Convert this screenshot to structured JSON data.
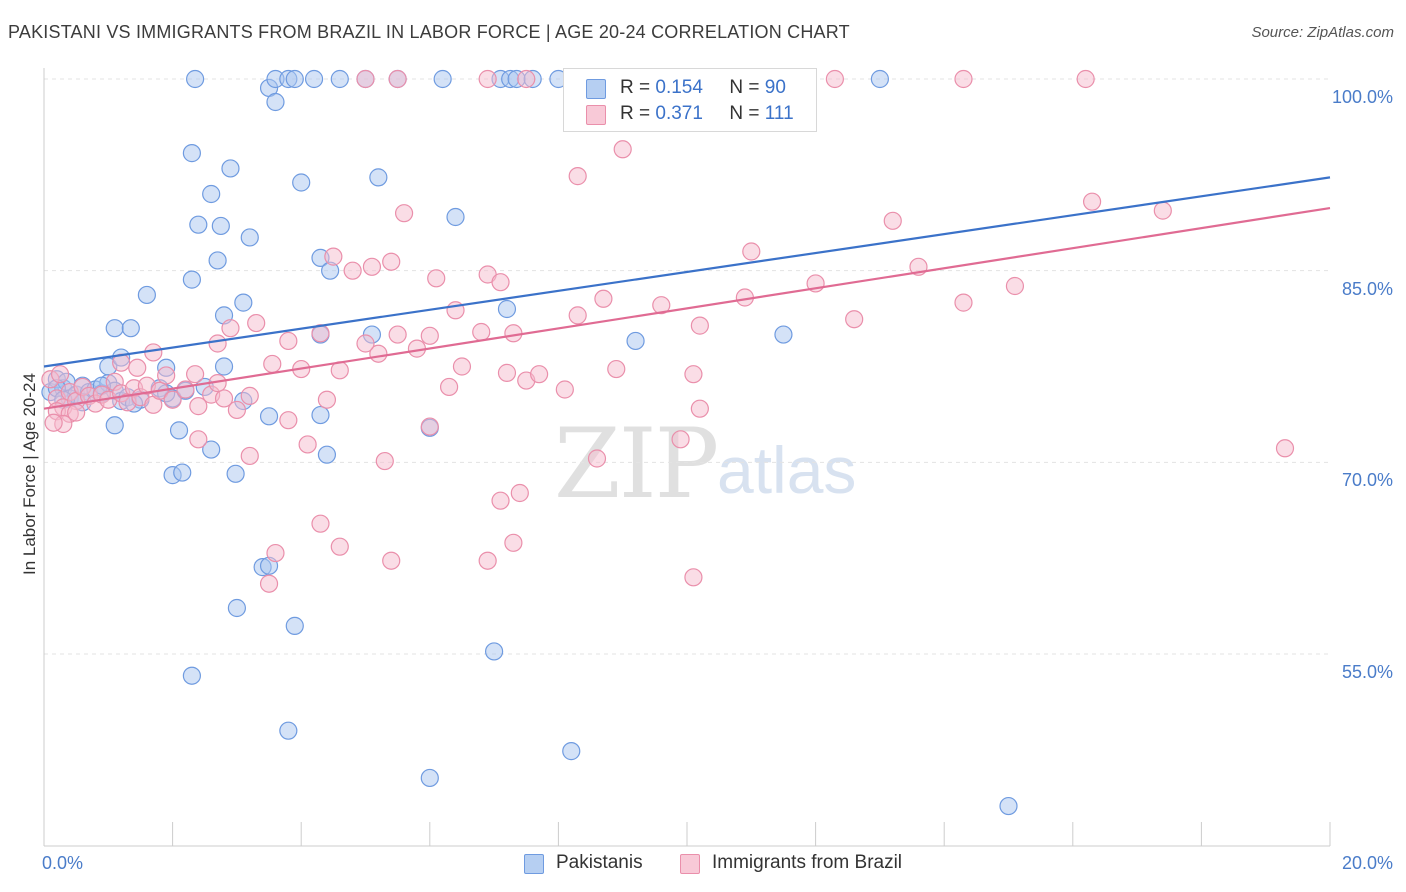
{
  "title": "PAKISTANI VS IMMIGRANTS FROM BRAZIL IN LABOR FORCE | AGE 20-24 CORRELATION CHART",
  "source": "Source: ZipAtlas.com",
  "watermark": {
    "zip": "ZIP",
    "atlas": "atlas"
  },
  "colors": {
    "blue_fill": "#a9c6ef",
    "blue_stroke": "#6f9be0",
    "blue_line": "#3b72c9",
    "pink_fill": "#f6bccd",
    "pink_stroke": "#ea8fab",
    "pink_line": "#e06b93",
    "tick_text": "#4a7cc9",
    "grid": "#e3e3e3"
  },
  "legend": {
    "rows": [
      {
        "r_label": "R = ",
        "r_value": "0.154",
        "n_label": "N = ",
        "n_value": "90"
      },
      {
        "r_label": "R = ",
        "r_value": "0.371",
        "n_label": "N = ",
        "n_value": "111"
      }
    ]
  },
  "bottom_legend": {
    "series1": "Pakistanis",
    "series2": "Immigrants from Brazil"
  },
  "chart_data": {
    "type": "scatter",
    "title": "PAKISTANI VS IMMIGRANTS FROM BRAZIL IN LABOR FORCE | AGE 20-24 CORRELATION CHART",
    "xlabel": "",
    "ylabel": "In Labor Force | Age 20-24",
    "xlim": [
      0,
      20
    ],
    "ylim": [
      42,
      102
    ],
    "x_ticks": [
      0,
      2,
      4,
      6,
      8,
      10,
      12,
      14,
      16,
      18,
      20
    ],
    "x_tick_labels": {
      "min": "0.0%",
      "max": "20.0%"
    },
    "y_ticks": [
      55,
      70,
      85,
      100
    ],
    "y_tick_labels": [
      "55.0%",
      "70.0%",
      "85.0%",
      "100.0%"
    ],
    "grid": true,
    "series": [
      {
        "name": "Pakistanis",
        "r": 0.154,
        "n": 90,
        "trend": {
          "x": [
            0,
            20
          ],
          "y": [
            77.5,
            92.3
          ]
        },
        "points": [
          [
            0.1,
            75.5
          ],
          [
            0.2,
            76.5
          ],
          [
            0.3,
            75.8
          ],
          [
            0.35,
            76.3
          ],
          [
            0.4,
            75.0
          ],
          [
            0.5,
            75.3
          ],
          [
            0.6,
            76.0
          ],
          [
            0.7,
            75.5
          ],
          [
            0.8,
            75.7
          ],
          [
            0.9,
            75.4
          ],
          [
            1.0,
            76.2
          ],
          [
            1.1,
            75.6
          ],
          [
            1.2,
            74.8
          ],
          [
            1.3,
            75.1
          ],
          [
            1.5,
            74.9
          ],
          [
            1.8,
            75.8
          ],
          [
            2.0,
            75.0
          ],
          [
            2.2,
            75.6
          ],
          [
            0.2,
            75.8
          ],
          [
            0.3,
            74.9
          ],
          [
            0.6,
            74.7
          ],
          [
            0.9,
            76.0
          ],
          [
            1.4,
            74.6
          ],
          [
            1.9,
            75.4
          ],
          [
            2.5,
            75.9
          ],
          [
            3.1,
            74.8
          ],
          [
            1.0,
            77.5
          ],
          [
            1.2,
            78.2
          ],
          [
            1.9,
            77.4
          ],
          [
            2.8,
            77.5
          ],
          [
            1.1,
            80.5
          ],
          [
            1.35,
            80.5
          ],
          [
            1.1,
            72.9
          ],
          [
            2.1,
            72.5
          ],
          [
            2.6,
            71.0
          ],
          [
            2.0,
            69.0
          ],
          [
            2.15,
            69.2
          ],
          [
            2.98,
            69.1
          ],
          [
            3.5,
            73.6
          ],
          [
            4.3,
            73.7
          ],
          [
            4.4,
            70.6
          ],
          [
            6.0,
            72.7
          ],
          [
            2.8,
            81.5
          ],
          [
            3.1,
            82.5
          ],
          [
            4.3,
            80.0
          ],
          [
            5.1,
            80.0
          ],
          [
            7.2,
            82.0
          ],
          [
            11.5,
            80.0
          ],
          [
            9.2,
            79.5
          ],
          [
            1.6,
            83.1
          ],
          [
            2.3,
            84.3
          ],
          [
            2.7,
            85.8
          ],
          [
            3.2,
            87.6
          ],
          [
            2.4,
            88.6
          ],
          [
            2.75,
            88.5
          ],
          [
            4.3,
            86.0
          ],
          [
            4.45,
            85.0
          ],
          [
            2.6,
            91.0
          ],
          [
            4.0,
            91.9
          ],
          [
            5.2,
            92.3
          ],
          [
            2.3,
            94.2
          ],
          [
            2.9,
            93.0
          ],
          [
            6.4,
            89.2
          ],
          [
            3.5,
            99.3
          ],
          [
            3.6,
            98.2
          ],
          [
            2.35,
            100.0
          ],
          [
            3.6,
            100.0
          ],
          [
            3.8,
            100.0
          ],
          [
            3.9,
            100.0
          ],
          [
            4.2,
            100.0
          ],
          [
            4.6,
            100.0
          ],
          [
            5.0,
            100.0
          ],
          [
            5.5,
            100.0
          ],
          [
            6.2,
            100.0
          ],
          [
            7.1,
            100.0
          ],
          [
            7.25,
            100.0
          ],
          [
            7.35,
            100.0
          ],
          [
            7.6,
            100.0
          ],
          [
            8.0,
            100.0
          ],
          [
            8.8,
            100.0
          ],
          [
            9.4,
            100.0
          ],
          [
            9.9,
            100.0
          ],
          [
            13.0,
            100.0
          ],
          [
            3.4,
            61.8
          ],
          [
            3.5,
            61.9
          ],
          [
            3.0,
            58.6
          ],
          [
            3.9,
            57.2
          ],
          [
            7.0,
            55.2
          ],
          [
            2.3,
            53.3
          ],
          [
            3.8,
            49.0
          ],
          [
            8.2,
            47.4
          ],
          [
            6.0,
            45.3
          ],
          [
            15.0,
            43.1
          ]
        ]
      },
      {
        "name": "Immigrants from Brazil",
        "r": 0.371,
        "n": 111,
        "trend": {
          "x": [
            0,
            20
          ],
          "y": [
            74.2,
            89.9
          ]
        },
        "points": [
          [
            0.1,
            76.5
          ],
          [
            0.2,
            75.0
          ],
          [
            0.3,
            74.3
          ],
          [
            0.4,
            75.5
          ],
          [
            0.5,
            74.8
          ],
          [
            0.6,
            75.9
          ],
          [
            0.7,
            75.2
          ],
          [
            0.8,
            74.6
          ],
          [
            0.9,
            75.3
          ],
          [
            1.0,
            74.9
          ],
          [
            1.1,
            76.3
          ],
          [
            1.2,
            75.4
          ],
          [
            1.3,
            74.7
          ],
          [
            1.4,
            75.8
          ],
          [
            1.5,
            75.1
          ],
          [
            1.6,
            76.0
          ],
          [
            1.7,
            74.5
          ],
          [
            1.8,
            75.6
          ],
          [
            2.0,
            74.9
          ],
          [
            2.2,
            75.7
          ],
          [
            2.4,
            74.4
          ],
          [
            2.6,
            75.3
          ],
          [
            2.8,
            75.0
          ],
          [
            3.0,
            74.1
          ],
          [
            3.2,
            75.2
          ],
          [
            0.2,
            74.0
          ],
          [
            0.4,
            73.8
          ],
          [
            0.5,
            73.9
          ],
          [
            0.3,
            73.0
          ],
          [
            0.15,
            73.1
          ],
          [
            0.25,
            76.9
          ],
          [
            1.45,
            77.4
          ],
          [
            1.2,
            77.8
          ],
          [
            1.9,
            76.8
          ],
          [
            2.35,
            76.9
          ],
          [
            2.7,
            76.2
          ],
          [
            3.55,
            77.7
          ],
          [
            4.0,
            77.3
          ],
          [
            4.6,
            77.2
          ],
          [
            5.2,
            78.5
          ],
          [
            5.8,
            78.9
          ],
          [
            6.3,
            75.9
          ],
          [
            6.5,
            77.5
          ],
          [
            7.2,
            77.0
          ],
          [
            7.5,
            76.4
          ],
          [
            7.7,
            76.9
          ],
          [
            8.1,
            75.7
          ],
          [
            8.9,
            77.3
          ],
          [
            10.1,
            76.9
          ],
          [
            1.7,
            78.6
          ],
          [
            2.7,
            79.3
          ],
          [
            2.9,
            80.5
          ],
          [
            3.3,
            80.9
          ],
          [
            3.8,
            79.5
          ],
          [
            4.3,
            80.1
          ],
          [
            5.0,
            79.3
          ],
          [
            5.5,
            80.0
          ],
          [
            6.0,
            79.9
          ],
          [
            6.4,
            81.9
          ],
          [
            6.8,
            80.2
          ],
          [
            7.3,
            80.1
          ],
          [
            8.3,
            81.5
          ],
          [
            8.7,
            82.8
          ],
          [
            9.6,
            82.3
          ],
          [
            10.2,
            80.7
          ],
          [
            10.9,
            82.9
          ],
          [
            12.6,
            81.2
          ],
          [
            14.3,
            82.5
          ],
          [
            12.0,
            84.0
          ],
          [
            13.6,
            85.3
          ],
          [
            15.1,
            83.8
          ],
          [
            6.1,
            84.4
          ],
          [
            6.9,
            84.7
          ],
          [
            7.1,
            84.1
          ],
          [
            4.8,
            85.0
          ],
          [
            5.1,
            85.3
          ],
          [
            5.4,
            85.7
          ],
          [
            4.5,
            86.1
          ],
          [
            11.0,
            86.5
          ],
          [
            13.2,
            88.9
          ],
          [
            17.4,
            89.7
          ],
          [
            16.3,
            90.4
          ],
          [
            5.6,
            89.5
          ],
          [
            8.3,
            92.4
          ],
          [
            9.0,
            94.5
          ],
          [
            2.4,
            71.8
          ],
          [
            3.2,
            70.5
          ],
          [
            3.8,
            73.3
          ],
          [
            4.1,
            71.4
          ],
          [
            4.4,
            74.9
          ],
          [
            5.3,
            70.1
          ],
          [
            6.0,
            72.8
          ],
          [
            7.1,
            67.0
          ],
          [
            7.4,
            67.6
          ],
          [
            8.6,
            70.3
          ],
          [
            9.9,
            71.8
          ],
          [
            10.2,
            74.2
          ],
          [
            19.3,
            71.1
          ],
          [
            3.6,
            62.9
          ],
          [
            3.5,
            60.5
          ],
          [
            4.3,
            65.2
          ],
          [
            4.6,
            63.4
          ],
          [
            5.4,
            62.3
          ],
          [
            6.9,
            62.3
          ],
          [
            7.3,
            63.7
          ],
          [
            10.1,
            61.0
          ],
          [
            5.0,
            100.0
          ],
          [
            5.5,
            100.0
          ],
          [
            6.9,
            100.0
          ],
          [
            7.5,
            100.0
          ],
          [
            8.3,
            100.0
          ],
          [
            9.1,
            100.0
          ],
          [
            9.8,
            100.0
          ],
          [
            10.4,
            100.0
          ],
          [
            10.9,
            100.0
          ],
          [
            11.5,
            100.0
          ],
          [
            12.3,
            100.0
          ],
          [
            14.3,
            100.0
          ],
          [
            16.2,
            100.0
          ]
        ]
      }
    ]
  }
}
